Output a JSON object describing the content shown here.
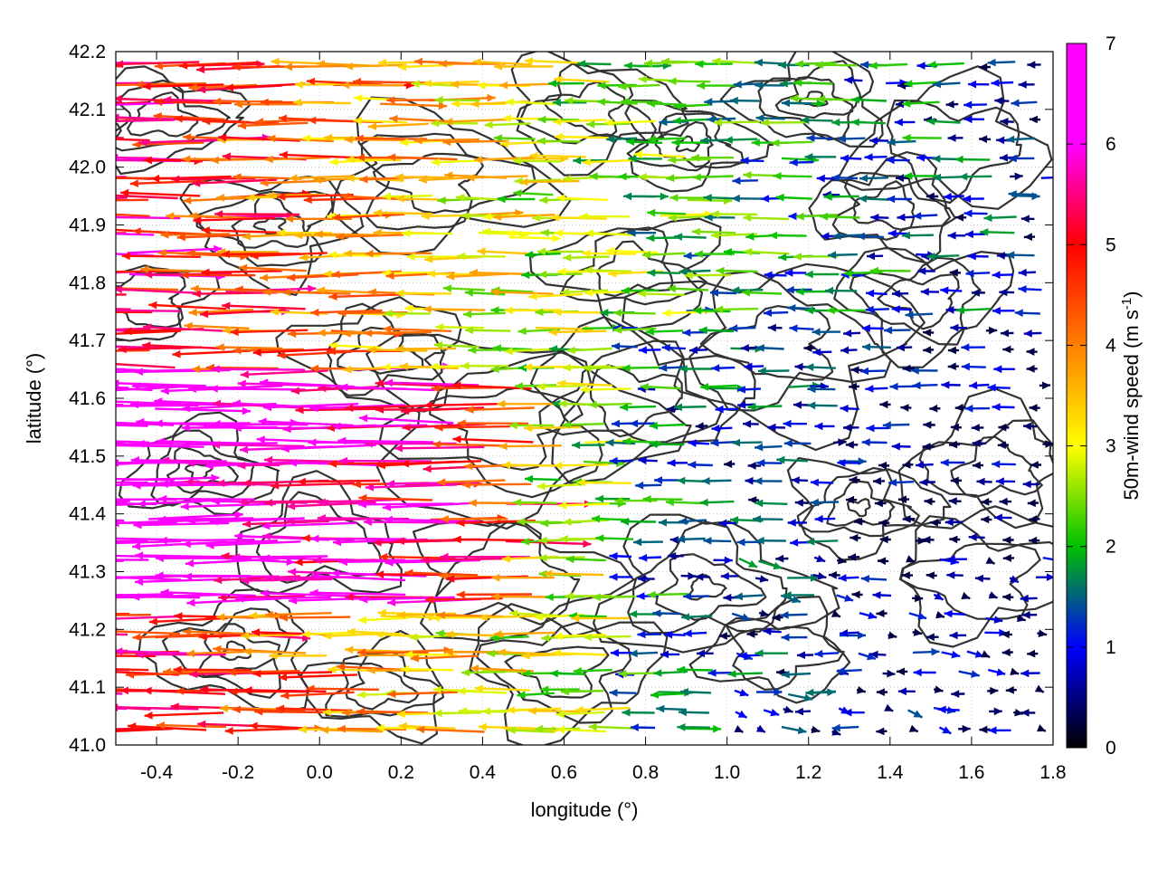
{
  "chart_data": {
    "type": "quiver",
    "xlabel": "longitude (°)",
    "ylabel": "latitude (°)",
    "xlim": [
      -0.5,
      1.8
    ],
    "ylim": [
      41.0,
      42.2
    ],
    "xticks": [
      "-0.4",
      "-0.2",
      "0.0",
      "0.2",
      "0.4",
      "0.6",
      "0.8",
      "1.0",
      "1.2",
      "1.4",
      "1.6",
      "1.8"
    ],
    "yticks": [
      "41.0",
      "41.1",
      "41.2",
      "41.3",
      "41.4",
      "41.5",
      "41.6",
      "41.7",
      "41.8",
      "41.9",
      "42.0",
      "42.1",
      "42.2"
    ],
    "grid": true,
    "contours": true,
    "colorbar": {
      "label_main": "50m-wind speed (m s",
      "label_sup": "-1",
      "label_close": ")",
      "range": [
        0,
        7
      ],
      "ticks": [
        "0",
        "1",
        "2",
        "3",
        "4",
        "5",
        "6",
        "7"
      ],
      "colormap": [
        "#000000",
        "#0000ff",
        "#00c000",
        "#ffff00",
        "#ff8000",
        "#ff0000",
        "#ff00ff"
      ]
    },
    "wind_field_summary": {
      "west_strong_band_lat": [
        41.25,
        41.65
      ],
      "west_max_speed": 7,
      "east_calm_speed": 1,
      "dominant_direction": "easterly (arrows pointing west)"
    }
  }
}
